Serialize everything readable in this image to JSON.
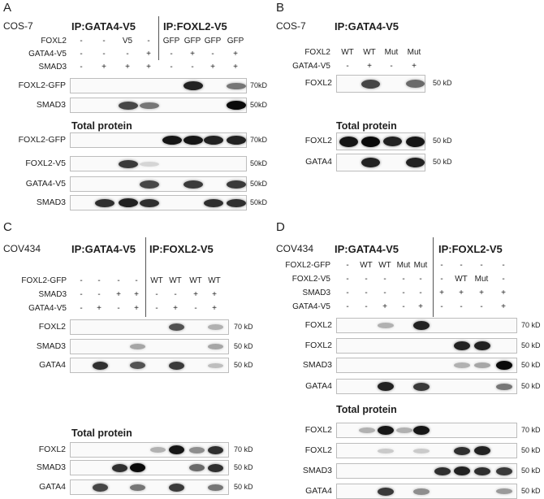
{
  "panels": [
    {
      "id": "A",
      "letter": "A",
      "cell_line": "COS-7",
      "ip_labels": [
        "IP:GATA4-V5",
        "IP:FOXL2-V5"
      ],
      "conditions": [
        {
          "label": "FOXL2",
          "values": [
            "-",
            "-",
            "V5",
            "-",
            "GFP",
            "GFP",
            "GFP",
            "GFP"
          ]
        },
        {
          "label": "GATA4-V5",
          "values": [
            "-",
            "-",
            "-",
            "+",
            "-",
            "+",
            "-",
            "+"
          ]
        },
        {
          "label": "SMAD3",
          "values": [
            "-",
            "+",
            "+",
            "+",
            "-",
            "-",
            "+",
            "+"
          ]
        }
      ],
      "total_label": "Total protein",
      "blots": [
        {
          "label": "FOXL2-GFP",
          "mw": "70kD",
          "section": "ip",
          "bands": [
            0,
            0,
            0,
            0,
            0,
            0.9,
            0,
            0.55
          ]
        },
        {
          "label": "SMAD3",
          "mw": "50kD",
          "section": "ip",
          "bands": [
            0,
            0,
            0.75,
            0.55,
            0,
            0,
            0,
            1
          ]
        },
        {
          "label": "FOXL2-GFP",
          "mw": "70kD",
          "section": "total",
          "bands": [
            0,
            0,
            0,
            0,
            0.95,
            0.95,
            0.9,
            0.9
          ]
        },
        {
          "label": "FOXL2-V5",
          "mw": "50kD",
          "section": "total",
          "bands": [
            0,
            0,
            0.8,
            0.15,
            0,
            0,
            0,
            0
          ]
        },
        {
          "label": "GATA4-V5",
          "mw": "50kD",
          "section": "total",
          "bands": [
            0,
            0,
            0,
            0.75,
            0,
            0.8,
            0,
            0.8
          ]
        },
        {
          "label": "SMAD3",
          "mw": "50kD",
          "section": "total",
          "bands": [
            0,
            0.85,
            0.9,
            0.85,
            0,
            0,
            0.85,
            0.85
          ]
        }
      ]
    },
    {
      "id": "B",
      "letter": "B",
      "cell_line": "COS-7",
      "ip_labels": [
        "IP:GATA4-V5"
      ],
      "conditions": [
        {
          "label": "FOXL2",
          "values": [
            "WT",
            "WT",
            "Mut",
            "Mut"
          ]
        },
        {
          "label": "GATA4-V5",
          "values": [
            "-",
            "+",
            "-",
            "+"
          ]
        }
      ],
      "total_label": "Total protein",
      "blots": [
        {
          "label": "FOXL2",
          "mw": "50 kD",
          "section": "ip",
          "bands": [
            0,
            0.75,
            0,
            0.6
          ]
        },
        {
          "label": "FOXL2",
          "mw": "50 kD",
          "section": "total",
          "bands": [
            0.95,
            1,
            0.9,
            0.95
          ]
        },
        {
          "label": "GATA4",
          "mw": "50 kD",
          "section": "total",
          "bands": [
            0,
            0.9,
            0,
            0.9
          ]
        }
      ]
    },
    {
      "id": "C",
      "letter": "C",
      "cell_line": "COV434",
      "ip_labels": [
        "IP:GATA4-V5",
        "IP:FOXL2-V5"
      ],
      "conditions": [
        {
          "label": "FOXL2-GFP",
          "values": [
            "-",
            "-",
            "-",
            "-",
            "WT",
            "WT",
            "WT",
            "WT"
          ]
        },
        {
          "label": "SMAD3",
          "values": [
            "-",
            "-",
            "+",
            "+",
            "-",
            "-",
            "+",
            "+"
          ]
        },
        {
          "label": "GATA4-V5",
          "values": [
            "-",
            "+",
            "-",
            "+",
            "-",
            "+",
            "-",
            "+"
          ]
        }
      ],
      "total_label": "Total protein",
      "blots": [
        {
          "label": "FOXL2",
          "mw": "70 kD",
          "section": "ip",
          "bands": [
            0,
            0,
            0,
            0,
            0,
            0.7,
            0,
            0.3
          ]
        },
        {
          "label": "SMAD3",
          "mw": "50 kD",
          "section": "ip",
          "bands": [
            0,
            0,
            0,
            0.35,
            0,
            0,
            0,
            0.35
          ]
        },
        {
          "label": "GATA4",
          "mw": "50 kD",
          "section": "ip",
          "bands": [
            0,
            0.85,
            0,
            0.7,
            0,
            0.8,
            0,
            0.25
          ]
        },
        {
          "label": "FOXL2",
          "mw": "70 kD",
          "section": "total",
          "bands": [
            0,
            0,
            0,
            0,
            0.3,
            0.95,
            0.45,
            0.85
          ]
        },
        {
          "label": "SMAD3",
          "mw": "50 kD",
          "section": "total",
          "bands": [
            0,
            0,
            0.85,
            1,
            0,
            0,
            0.6,
            0.85
          ]
        },
        {
          "label": "GATA4",
          "mw": "50 kD",
          "section": "total",
          "bands": [
            0,
            0.75,
            0,
            0.55,
            0,
            0.8,
            0,
            0.55
          ]
        }
      ]
    },
    {
      "id": "D",
      "letter": "D",
      "cell_line": "COV434",
      "ip_labels": [
        "IP:GATA4-V5",
        "IP:FOXL2-V5"
      ],
      "conditions": [
        {
          "label": "FOXL2-GFP",
          "values": [
            "-",
            "WT",
            "WT",
            "Mut",
            "Mut",
            "-",
            "-",
            "-",
            "-"
          ]
        },
        {
          "label": "FOXL2-V5",
          "values": [
            "-",
            "-",
            "-",
            "-",
            "-",
            "-",
            "WT",
            "Mut",
            "-"
          ]
        },
        {
          "label": "SMAD3",
          "values": [
            "-",
            "-",
            "-",
            "-",
            "-",
            "+",
            "+",
            "+",
            "+"
          ]
        },
        {
          "label": "GATA4-V5",
          "values": [
            "-",
            "-",
            "+",
            "-",
            "+",
            "-",
            "-",
            "-",
            "+"
          ]
        }
      ],
      "total_label": "Total protein",
      "blots": [
        {
          "label": "FOXL2",
          "mw": "70 kD",
          "section": "ip",
          "bands": [
            0,
            0,
            0.3,
            0,
            0.9,
            0,
            0,
            0,
            0
          ]
        },
        {
          "label": "FOXL2",
          "mw": "50 kD",
          "section": "ip",
          "bands": [
            0,
            0,
            0,
            0,
            0,
            0,
            0.9,
            0.9,
            0
          ]
        },
        {
          "label": "SMAD3",
          "mw": "50 kD",
          "section": "ip",
          "bands": [
            0,
            0,
            0,
            0,
            0,
            0,
            0.3,
            0.35,
            1
          ]
        },
        {
          "label": "GATA4",
          "mw": "50 kD",
          "section": "ip",
          "bands": [
            0,
            0,
            0.9,
            0,
            0.8,
            0,
            0,
            0,
            0.55
          ]
        },
        {
          "label": "FOXL2",
          "mw": "70 kD",
          "section": "total",
          "bands": [
            0,
            0.3,
            0.95,
            0.3,
            0.95,
            0,
            0,
            0,
            0
          ]
        },
        {
          "label": "FOXL2",
          "mw": "50 kD",
          "section": "total",
          "bands": [
            0,
            0,
            0.2,
            0,
            0.2,
            0,
            0.85,
            0.9,
            0
          ]
        },
        {
          "label": "SMAD3",
          "mw": "50 kD",
          "section": "total",
          "bands": [
            0,
            0,
            0,
            0,
            0,
            0.85,
            0.9,
            0.85,
            0.8
          ]
        },
        {
          "label": "GATA4",
          "mw": "50 kD",
          "section": "total",
          "bands": [
            0,
            0,
            0.8,
            0,
            0.45,
            0,
            0,
            0,
            0.4
          ]
        }
      ]
    }
  ]
}
